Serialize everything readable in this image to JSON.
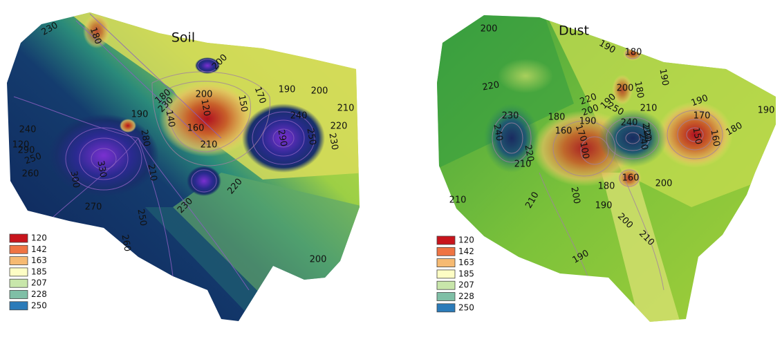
{
  "maps": [
    {
      "title": "Soil",
      "contour_labels": [
        "230",
        "180",
        "200",
        "200",
        "190",
        "200",
        "180",
        "170",
        "120",
        "150",
        "210",
        "230",
        "190",
        "140",
        "160",
        "240",
        "220",
        "210",
        "240",
        "120",
        "280",
        "290",
        "250",
        "330",
        "260",
        "300",
        "270",
        "290",
        "210",
        "220",
        "250",
        "230",
        "230",
        "260",
        "200",
        "250"
      ],
      "legend": [
        {
          "label": "120",
          "color": "#c8141c"
        },
        {
          "label": "142",
          "color": "#ef7443"
        },
        {
          "label": "163",
          "color": "#f6ba72"
        },
        {
          "label": "185",
          "color": "#fdfdc4"
        },
        {
          "label": "207",
          "color": "#c8e6aa"
        },
        {
          "label": "228",
          "color": "#7fbfa6"
        },
        {
          "label": "250",
          "color": "#2b7bb9"
        }
      ]
    },
    {
      "title": "Dust",
      "contour_labels": [
        "200",
        "190",
        "180",
        "200",
        "190",
        "180",
        "190",
        "220",
        "220",
        "200",
        "190",
        "250",
        "210",
        "190",
        "170",
        "190",
        "230",
        "240",
        "180",
        "160",
        "170",
        "240",
        "150",
        "160",
        "180",
        "240",
        "100",
        "220",
        "210",
        "160",
        "210",
        "220",
        "180",
        "200",
        "200",
        "190",
        "210",
        "210",
        "190",
        "200",
        "210"
      ],
      "legend": [
        {
          "label": "120",
          "color": "#c8141c"
        },
        {
          "label": "142",
          "color": "#ef7443"
        },
        {
          "label": "163",
          "color": "#f6ba72"
        },
        {
          "label": "185",
          "color": "#fdfdc4"
        },
        {
          "label": "207",
          "color": "#c8e6aa"
        },
        {
          "label": "228",
          "color": "#7fbfa6"
        },
        {
          "label": "250",
          "color": "#2b7bb9"
        }
      ]
    }
  ]
}
